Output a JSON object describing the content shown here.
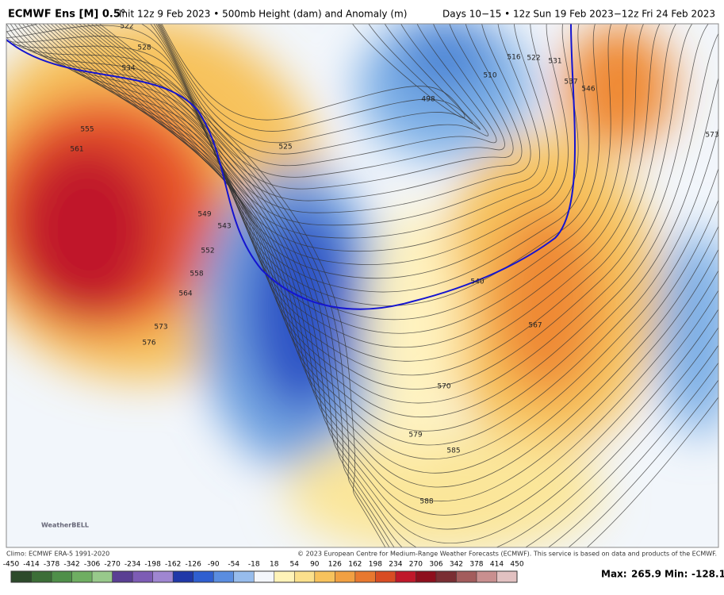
{
  "header": {
    "model": "ECMWF Ens [M] 0.5°",
    "subtitle": "Init 12z 9 Feb 2023 • 500mb Height (dam) and Anomaly (m)",
    "valid": "Days 10−15 • 12z Sun 19 Feb 2023−12z Fri 24 Feb 2023"
  },
  "map": {
    "contour_labels": [
      522,
      528,
      534,
      555,
      561,
      549,
      543,
      552,
      558,
      564,
      573,
      576,
      525,
      498,
      510,
      516,
      522,
      531,
      537,
      546,
      573,
      540,
      567,
      570,
      579,
      585,
      588
    ]
  },
  "logo": "WeatherBELL",
  "footer": {
    "climo": "Climo: ECMWF ERA-5 1991-2020",
    "copyright": "© 2023 European Centre for Medium-Range Weather Forecasts (ECMWF). This service is based on data and products of the ECMWF."
  },
  "colorbar": {
    "ticks": [
      -450,
      -414,
      -378,
      -342,
      -306,
      -270,
      -234,
      -198,
      -162,
      -126,
      -90,
      -54,
      -18,
      18,
      54,
      90,
      126,
      162,
      198,
      234,
      270,
      306,
      342,
      378,
      414,
      450
    ]
  },
  "stats": {
    "max_label": "Max:",
    "max": 265.9,
    "min_label": "Min:",
    "min": -128.1
  }
}
